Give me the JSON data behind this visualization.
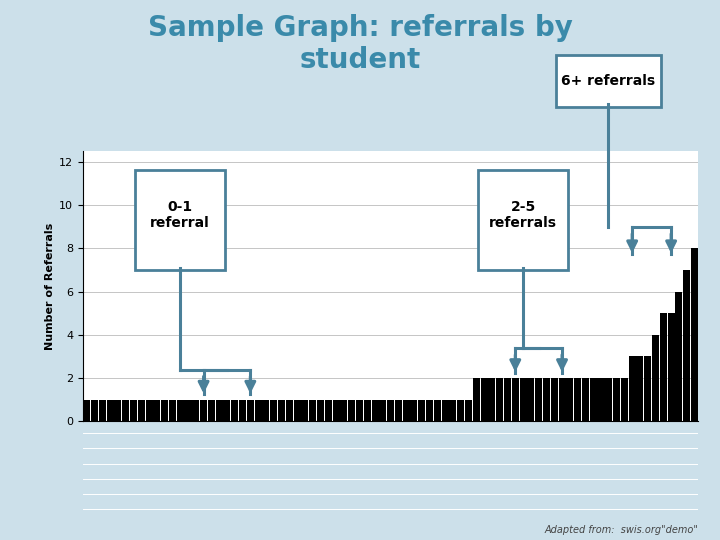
{
  "title_line1": "Sample Graph: referrals by",
  "title_line2": "student",
  "ylabel": "Number of Referrals",
  "bg_color": "#cce0ea",
  "plot_bg": "#ffffff",
  "bar_color": "#000000",
  "arrow_color": "#4a8099",
  "yticks": [
    0,
    2,
    4,
    6,
    8,
    10,
    12
  ],
  "ylim": [
    0,
    12.5
  ],
  "annotation_1_text": "0-1\nreferral",
  "annotation_2_text": "2-5\nreferrals",
  "annotation_3_text": "6+ referrals",
  "footer_text": "Adapted from:  swis.org\"demo\"",
  "bar_values": [
    1,
    1,
    1,
    1,
    1,
    1,
    1,
    1,
    1,
    1,
    1,
    1,
    1,
    1,
    1,
    1,
    1,
    1,
    1,
    1,
    1,
    1,
    1,
    1,
    1,
    1,
    1,
    1,
    1,
    1,
    1,
    1,
    1,
    1,
    1,
    1,
    1,
    1,
    1,
    1,
    1,
    1,
    1,
    1,
    1,
    1,
    1,
    1,
    1,
    1,
    2,
    2,
    2,
    2,
    2,
    2,
    2,
    2,
    2,
    2,
    2,
    2,
    2,
    2,
    2,
    2,
    2,
    2,
    2,
    2,
    3,
    3,
    3,
    4,
    5,
    5,
    6,
    7,
    8
  ]
}
